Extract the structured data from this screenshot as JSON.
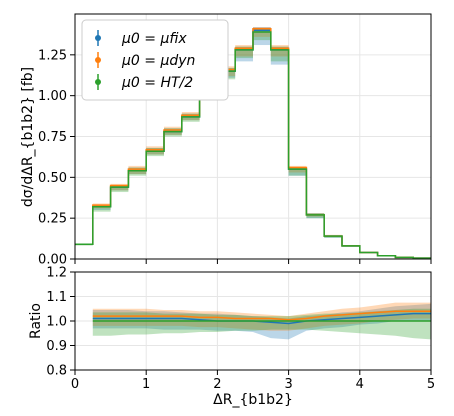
{
  "chart_data": [
    {
      "type": "line",
      "panel": "main",
      "ylabel": "dσ/dΔR_{b1b2}  [fb]",
      "xlim": [
        0,
        5
      ],
      "ylim": [
        0,
        1.5
      ],
      "grid": true,
      "legend_position": "top-left",
      "x_ticks": [
        0,
        1,
        2,
        3,
        4,
        5
      ],
      "y_ticks": [
        "0.00",
        "0.25",
        "0.50",
        "0.75",
        "1.00",
        "1.25"
      ],
      "bin_edges": [
        0,
        0.25,
        0.5,
        0.75,
        1.0,
        1.25,
        1.5,
        1.75,
        2.0,
        2.25,
        2.5,
        2.75,
        3.0,
        3.25,
        3.5,
        3.75,
        4.0,
        4.25,
        4.5,
        4.75,
        5.0
      ],
      "series": [
        {
          "name": "μ0 = μfix",
          "color": "#1f77b4",
          "values": [
            0.09,
            0.32,
            0.44,
            0.54,
            0.66,
            0.78,
            0.87,
            1.02,
            1.15,
            1.28,
            1.4,
            1.28,
            0.55,
            0.27,
            0.14,
            0.08,
            0.04,
            0.02,
            0.01,
            0.005
          ],
          "band_low": [
            0.085,
            0.3,
            0.42,
            0.52,
            0.64,
            0.76,
            0.85,
            0.99,
            1.11,
            1.21,
            1.31,
            1.19,
            0.51,
            0.25,
            0.13,
            0.075,
            0.038,
            0.019,
            0.009,
            0.004
          ],
          "band_high": [
            0.093,
            0.33,
            0.45,
            0.56,
            0.68,
            0.8,
            0.89,
            1.04,
            1.17,
            1.3,
            1.42,
            1.3,
            0.56,
            0.28,
            0.145,
            0.083,
            0.042,
            0.021,
            0.011,
            0.006
          ]
        },
        {
          "name": "μ0 = μdyn",
          "color": "#ff7f0e",
          "values": [
            0.09,
            0.33,
            0.45,
            0.55,
            0.67,
            0.79,
            0.88,
            1.03,
            1.16,
            1.29,
            1.41,
            1.29,
            0.56,
            0.27,
            0.14,
            0.08,
            0.04,
            0.02,
            0.01,
            0.005
          ],
          "band_low": [
            0.085,
            0.31,
            0.42,
            0.52,
            0.64,
            0.76,
            0.85,
            0.99,
            1.12,
            1.24,
            1.36,
            1.24,
            0.53,
            0.26,
            0.135,
            0.077,
            0.039,
            0.019,
            0.009,
            0.004
          ],
          "band_high": [
            0.094,
            0.34,
            0.46,
            0.57,
            0.69,
            0.81,
            0.9,
            1.05,
            1.18,
            1.31,
            1.42,
            1.31,
            0.57,
            0.28,
            0.148,
            0.085,
            0.043,
            0.022,
            0.011,
            0.006
          ]
        },
        {
          "name": "μ0 = HT/2",
          "color": "#2ca02c",
          "values": [
            0.09,
            0.32,
            0.44,
            0.54,
            0.66,
            0.78,
            0.87,
            1.02,
            1.15,
            1.28,
            1.39,
            1.28,
            0.55,
            0.27,
            0.14,
            0.08,
            0.04,
            0.02,
            0.01,
            0.005
          ],
          "band_low": [
            0.083,
            0.29,
            0.41,
            0.51,
            0.63,
            0.75,
            0.84,
            0.98,
            1.1,
            1.23,
            1.34,
            1.21,
            0.51,
            0.25,
            0.13,
            0.074,
            0.037,
            0.018,
            0.009,
            0.004
          ],
          "band_high": [
            0.093,
            0.33,
            0.45,
            0.56,
            0.68,
            0.8,
            0.89,
            1.04,
            1.17,
            1.3,
            1.41,
            1.3,
            0.56,
            0.28,
            0.145,
            0.083,
            0.042,
            0.021,
            0.011,
            0.006
          ]
        }
      ]
    },
    {
      "type": "line",
      "panel": "ratio",
      "xlabel": "ΔR_{b1b2}",
      "ylabel": "Ratio",
      "xlim": [
        0,
        5
      ],
      "ylim": [
        0.8,
        1.2
      ],
      "grid": true,
      "x_ticks": [
        "0",
        "1",
        "2",
        "3",
        "4",
        "5"
      ],
      "y_ticks": [
        "0.8",
        "0.9",
        "1.0",
        "1.1",
        "1.2"
      ],
      "x": [
        0.25,
        0.5,
        0.75,
        1.0,
        1.25,
        1.5,
        1.75,
        2.0,
        2.25,
        2.5,
        2.75,
        3.0,
        3.25,
        3.5,
        3.75,
        4.0,
        4.25,
        4.5,
        4.75,
        5.0
      ],
      "series": [
        {
          "name": "μ0 = μfix",
          "color": "#1f77b4",
          "values": [
            1.01,
            1.01,
            1.01,
            1.01,
            1.01,
            1.01,
            1.005,
            1.0,
            1.0,
            1.0,
            0.995,
            0.99,
            1.0,
            1.005,
            1.01,
            1.015,
            1.02,
            1.025,
            1.03,
            1.03
          ],
          "band_low": [
            0.97,
            0.97,
            0.97,
            0.97,
            0.965,
            0.965,
            0.965,
            0.96,
            0.96,
            0.955,
            0.93,
            0.925,
            0.96,
            0.97,
            0.975,
            0.985,
            0.99,
            1.0,
            1.0,
            1.0
          ],
          "band_high": [
            1.045,
            1.045,
            1.045,
            1.04,
            1.04,
            1.035,
            1.03,
            1.03,
            1.025,
            1.02,
            1.015,
            1.01,
            1.02,
            1.025,
            1.035,
            1.04,
            1.05,
            1.06,
            1.065,
            1.07
          ]
        },
        {
          "name": "μ0 = μdyn",
          "color": "#ff7f0e",
          "values": [
            1.02,
            1.02,
            1.02,
            1.02,
            1.02,
            1.02,
            1.015,
            1.015,
            1.01,
            1.01,
            1.01,
            1.005,
            1.01,
            1.02,
            1.025,
            1.03,
            1.035,
            1.04,
            1.04,
            1.04
          ],
          "band_low": [
            0.98,
            0.98,
            0.98,
            0.98,
            0.98,
            0.98,
            0.975,
            0.975,
            0.97,
            0.965,
            0.96,
            0.96,
            0.97,
            0.98,
            0.985,
            0.99,
            1.0,
            1.005,
            1.01,
            1.01
          ],
          "band_high": [
            1.05,
            1.05,
            1.05,
            1.05,
            1.045,
            1.045,
            1.04,
            1.04,
            1.035,
            1.03,
            1.025,
            1.02,
            1.03,
            1.04,
            1.05,
            1.055,
            1.065,
            1.075,
            1.075,
            1.075
          ]
        },
        {
          "name": "μ0 = HT/2",
          "color": "#2ca02c",
          "values": [
            1.0,
            1.0,
            1.0,
            1.0,
            1.0,
            1.0,
            1.0,
            1.0,
            1.0,
            1.0,
            1.0,
            1.0,
            1.0,
            1.0,
            1.0,
            1.0,
            1.0,
            1.0,
            1.0,
            1.0
          ],
          "band_low": [
            0.94,
            0.94,
            0.945,
            0.945,
            0.95,
            0.95,
            0.955,
            0.955,
            0.96,
            0.96,
            0.965,
            0.965,
            0.965,
            0.96,
            0.955,
            0.95,
            0.945,
            0.94,
            0.93,
            0.925
          ],
          "band_high": [
            1.035,
            1.035,
            1.035,
            1.035,
            1.03,
            1.03,
            1.03,
            1.025,
            1.025,
            1.02,
            1.02,
            1.02,
            1.025,
            1.03,
            1.03,
            1.035,
            1.04,
            1.045,
            1.05,
            1.05
          ]
        }
      ]
    }
  ]
}
